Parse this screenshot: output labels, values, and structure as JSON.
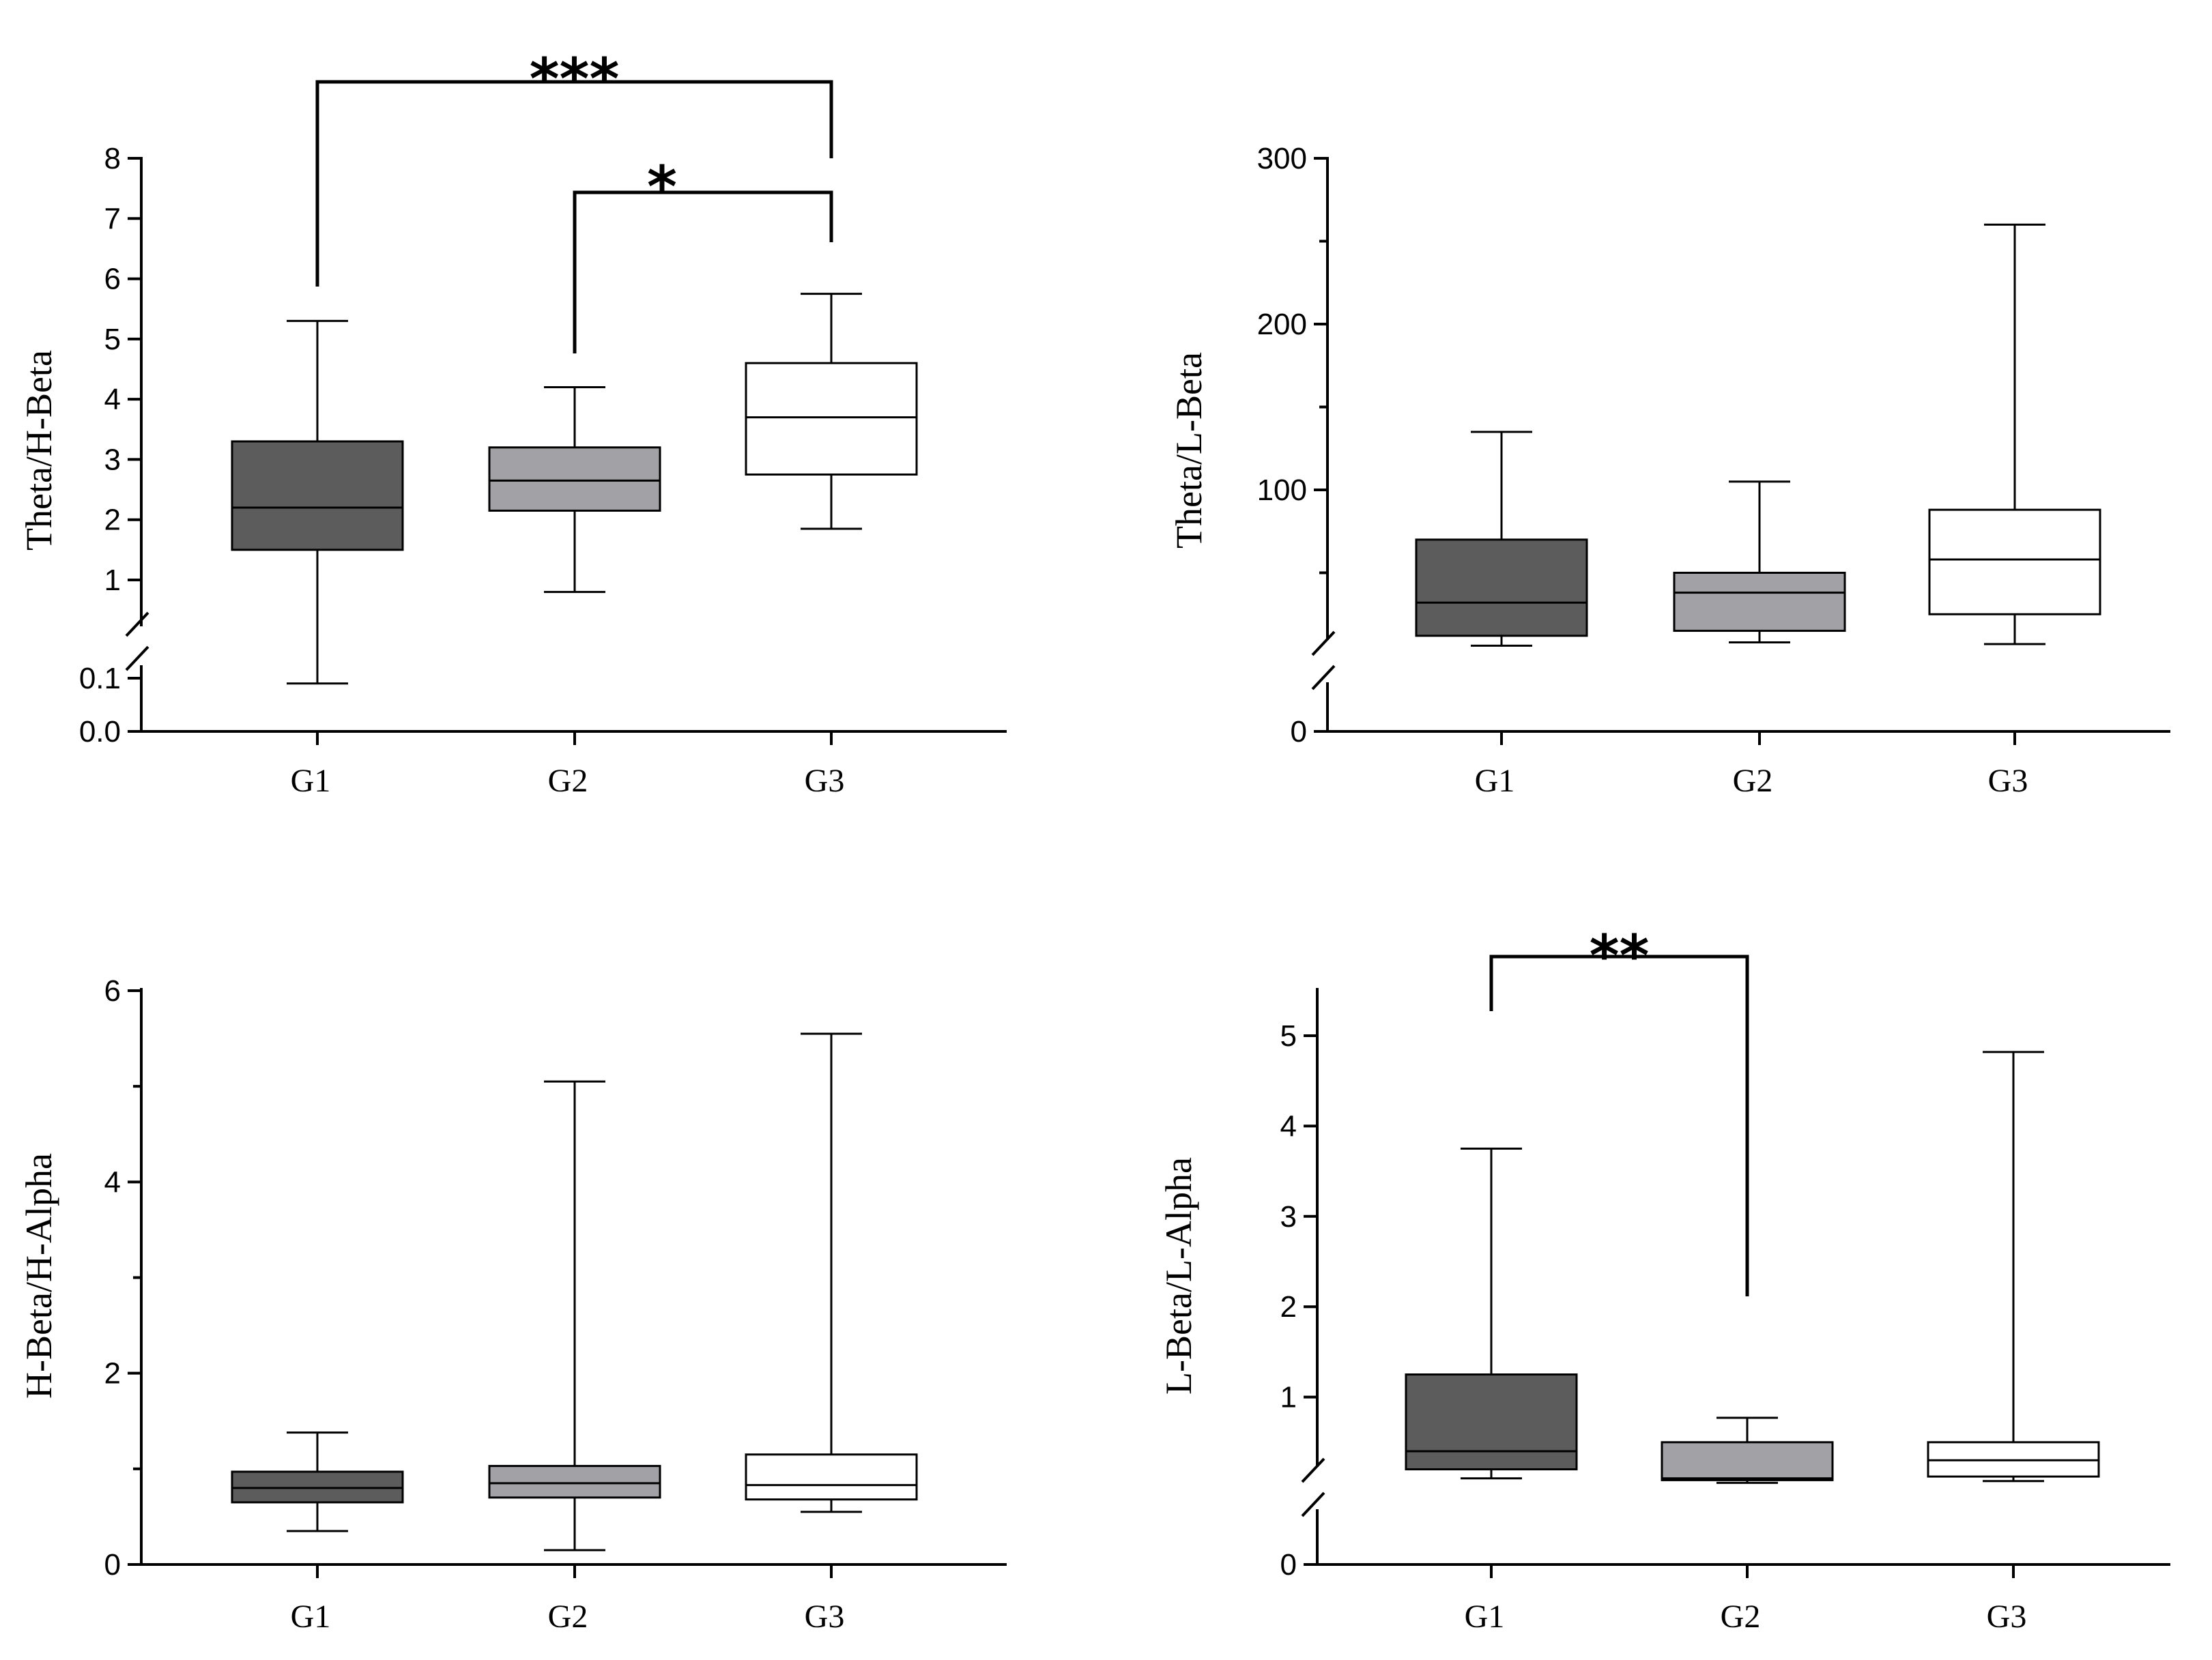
{
  "colors": {
    "G1": "#5c5c5c",
    "G2": "#a2a2a6",
    "G3": "#ffffff"
  },
  "chart_data": [
    {
      "type": "box",
      "panel": "top-left",
      "ylabel": "Theta/H-Beta",
      "categories": [
        "G1",
        "G2",
        "G3"
      ],
      "axis_break": true,
      "ylim_lower": [
        0.0,
        0.1
      ],
      "ylim_upper": [
        1,
        8
      ],
      "y_ticks_lower": [
        0.0,
        0.1
      ],
      "y_ticks_upper": [
        1,
        2,
        3,
        4,
        5,
        6,
        7,
        8
      ],
      "y_tick_labels_lower": [
        "0.0",
        "0.1"
      ],
      "y_tick_labels_upper": [
        "1",
        "2",
        "3",
        "4",
        "5",
        "6",
        "7",
        "8"
      ],
      "boxes": [
        {
          "group": "G1",
          "min": 0.09,
          "q1": 1.5,
          "median": 2.2,
          "q3": 3.3,
          "max": 5.3
        },
        {
          "group": "G2",
          "min": 0.8,
          "q1": 2.15,
          "median": 2.65,
          "q3": 3.2,
          "max": 4.2
        },
        {
          "group": "G3",
          "min": 1.85,
          "q1": 2.75,
          "median": 3.7,
          "q3": 4.6,
          "max": 5.75
        }
      ],
      "significance": [
        {
          "from": "G1",
          "to": "G3",
          "label": "***"
        },
        {
          "from": "G2",
          "to": "G3",
          "label": "*"
        }
      ]
    },
    {
      "type": "box",
      "panel": "top-right",
      "ylabel": "Theta/L-Beta",
      "categories": [
        "G1",
        "G2",
        "G3"
      ],
      "axis_break": true,
      "ylim": [
        0,
        300
      ],
      "y_ticks": [
        0,
        100,
        200,
        300
      ],
      "y_tick_labels": [
        "0",
        "100",
        "200",
        "300"
      ],
      "boxes": [
        {
          "group": "G1",
          "min": 6,
          "q1": 12,
          "median": 32,
          "q3": 70,
          "max": 135
        },
        {
          "group": "G2",
          "min": 8,
          "q1": 15,
          "median": 38,
          "q3": 50,
          "max": 105
        },
        {
          "group": "G3",
          "min": 7,
          "q1": 25,
          "median": 58,
          "q3": 88,
          "max": 260
        }
      ],
      "significance": []
    },
    {
      "type": "box",
      "panel": "bottom-left",
      "ylabel": "H-Beta/H-Alpha",
      "categories": [
        "G1",
        "G2",
        "G3"
      ],
      "axis_break": false,
      "ylim": [
        0,
        6
      ],
      "y_ticks": [
        0,
        2,
        4,
        6
      ],
      "y_tick_labels": [
        "0",
        "2",
        "4",
        "6"
      ],
      "boxes": [
        {
          "group": "G1",
          "min": 0.35,
          "q1": 0.65,
          "median": 0.8,
          "q3": 0.97,
          "max": 1.38
        },
        {
          "group": "G2",
          "min": 0.15,
          "q1": 0.7,
          "median": 0.85,
          "q3": 1.03,
          "max": 5.05
        },
        {
          "group": "G3",
          "min": 0.55,
          "q1": 0.68,
          "median": 0.83,
          "q3": 1.15,
          "max": 5.55
        }
      ],
      "significance": []
    },
    {
      "type": "box",
      "panel": "bottom-right",
      "ylabel": "L-Beta/L-Alpha",
      "categories": [
        "G1",
        "G2",
        "G3"
      ],
      "axis_break": true,
      "ylim": [
        0,
        5.5
      ],
      "y_ticks": [
        0,
        1,
        2,
        3,
        4,
        5
      ],
      "y_tick_labels": [
        "0",
        "1",
        "2",
        "3",
        "4",
        "5"
      ],
      "boxes": [
        {
          "group": "G1",
          "min": 0.1,
          "q1": 0.2,
          "median": 0.4,
          "q3": 1.25,
          "max": 3.75
        },
        {
          "group": "G2",
          "min": 0.05,
          "q1": 0.08,
          "median": 0.1,
          "q3": 0.5,
          "max": 0.77
        },
        {
          "group": "G3",
          "min": 0.07,
          "q1": 0.12,
          "median": 0.3,
          "q3": 0.5,
          "max": 4.82
        }
      ],
      "significance": [
        {
          "from": "G1",
          "to": "G2",
          "label": "**"
        }
      ]
    }
  ]
}
